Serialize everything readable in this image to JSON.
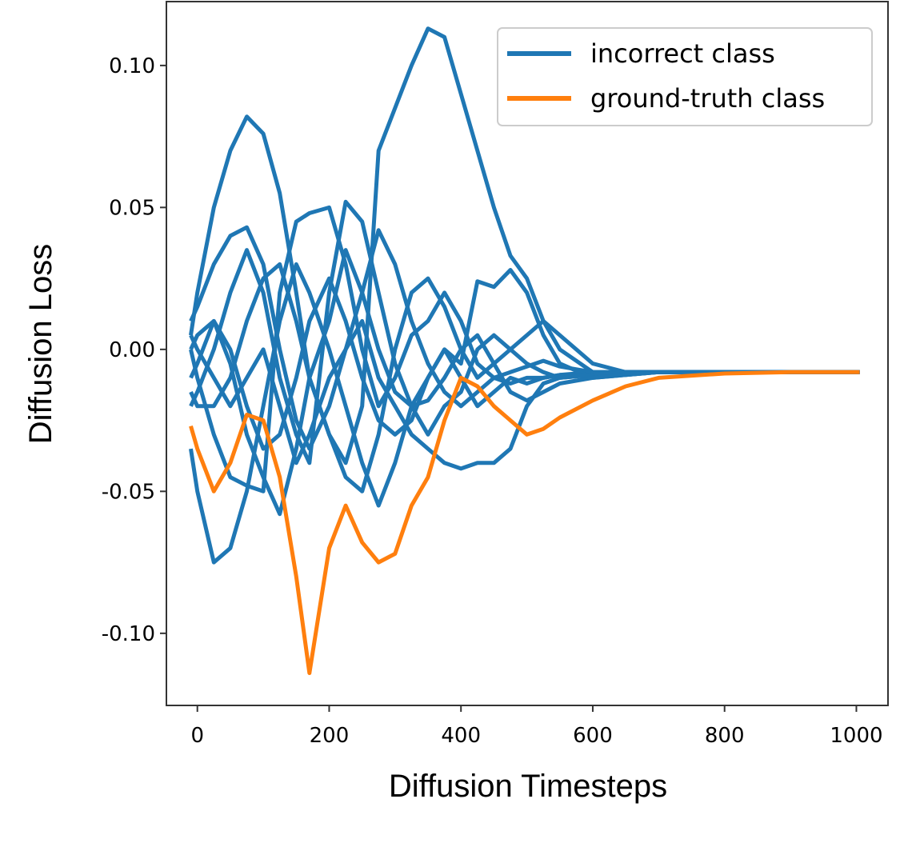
{
  "chart_data": {
    "type": "line",
    "xlabel": "Diffusion Timesteps",
    "ylabel": "Diffusion Loss",
    "x": [
      -10,
      0,
      25,
      50,
      75,
      100,
      125,
      150,
      170,
      200,
      225,
      250,
      275,
      300,
      325,
      350,
      375,
      400,
      425,
      450,
      475,
      500,
      525,
      550,
      600,
      650,
      700,
      800,
      900,
      1005
    ],
    "series": [
      {
        "name": "incorrect class",
        "color": "#1f77b4",
        "lines": [
          [
            0.005,
            0.02,
            0.05,
            0.07,
            0.082,
            0.076,
            0.055,
            0.02,
            -0.01,
            -0.03,
            -0.04,
            -0.02,
            0.07,
            0.085,
            0.1,
            0.113,
            0.11,
            0.09,
            0.07,
            0.05,
            0.033,
            0.025,
            0.01,
            0.0,
            -0.008,
            -0.009,
            -0.008,
            -0.008,
            -0.008,
            -0.008
          ],
          [
            -0.035,
            -0.05,
            -0.075,
            -0.07,
            -0.05,
            -0.02,
            0.01,
            0.03,
            0.02,
            0.0,
            -0.02,
            -0.04,
            -0.055,
            -0.04,
            -0.02,
            -0.01,
            0.0,
            -0.01,
            -0.02,
            -0.015,
            -0.01,
            -0.012,
            -0.01,
            -0.009,
            -0.008,
            -0.008,
            -0.008,
            -0.008,
            -0.008,
            -0.008
          ],
          [
            0.0,
            -0.01,
            -0.03,
            -0.045,
            -0.048,
            -0.05,
            0.02,
            0.045,
            0.048,
            0.05,
            0.03,
            0.0,
            -0.02,
            -0.01,
            0.005,
            0.01,
            0.02,
            0.01,
            -0.005,
            -0.01,
            -0.012,
            -0.01,
            -0.01,
            -0.009,
            -0.009,
            -0.008,
            -0.008,
            -0.008,
            -0.008,
            -0.008
          ],
          [
            -0.02,
            -0.015,
            0.0,
            0.02,
            0.035,
            0.02,
            -0.01,
            -0.03,
            -0.04,
            0.02,
            0.052,
            0.045,
            0.02,
            -0.005,
            -0.02,
            -0.03,
            -0.02,
            -0.015,
            0.0,
            0.005,
            0.0,
            -0.005,
            -0.008,
            -0.01,
            -0.009,
            -0.008,
            -0.008,
            -0.008,
            -0.008,
            -0.008
          ],
          [
            0.01,
            0.015,
            0.03,
            0.04,
            0.043,
            0.03,
            0.0,
            -0.025,
            -0.035,
            -0.02,
            0.0,
            0.02,
            0.042,
            0.03,
            0.01,
            -0.005,
            -0.015,
            -0.02,
            -0.015,
            -0.01,
            -0.008,
            -0.006,
            -0.004,
            -0.006,
            -0.008,
            -0.008,
            -0.008,
            -0.008,
            -0.008,
            -0.008
          ],
          [
            -0.01,
            -0.005,
            0.01,
            0.0,
            -0.02,
            -0.035,
            -0.03,
            -0.01,
            0.01,
            0.025,
            0.01,
            -0.01,
            -0.025,
            -0.03,
            -0.025,
            -0.01,
            0.0,
            -0.005,
            0.024,
            0.022,
            0.028,
            0.02,
            0.005,
            -0.005,
            -0.01,
            -0.009,
            -0.008,
            -0.008,
            -0.008,
            -0.008
          ],
          [
            0.005,
            0.0,
            -0.01,
            -0.02,
            -0.01,
            0.0,
            -0.02,
            -0.04,
            -0.03,
            -0.01,
            0.0,
            0.01,
            -0.01,
            -0.02,
            -0.03,
            -0.035,
            -0.04,
            -0.042,
            -0.04,
            -0.04,
            -0.035,
            -0.02,
            -0.012,
            -0.01,
            -0.009,
            -0.008,
            -0.008,
            -0.008,
            -0.008,
            -0.008
          ],
          [
            -0.015,
            -0.02,
            -0.02,
            -0.01,
            0.01,
            0.025,
            0.03,
            0.01,
            -0.01,
            -0.03,
            -0.045,
            -0.05,
            -0.03,
            0.0,
            0.02,
            0.025,
            0.015,
            0.0,
            -0.01,
            -0.005,
            0.0,
            0.005,
            0.01,
            0.005,
            -0.005,
            -0.008,
            -0.008,
            -0.008,
            -0.008,
            -0.008
          ],
          [
            0.0,
            0.005,
            0.01,
            -0.005,
            -0.03,
            -0.045,
            -0.058,
            -0.035,
            -0.01,
            0.01,
            0.035,
            0.02,
            0.0,
            -0.015,
            -0.02,
            -0.018,
            -0.01,
            0.0,
            0.005,
            -0.005,
            -0.015,
            -0.018,
            -0.015,
            -0.012,
            -0.01,
            -0.009,
            -0.008,
            -0.008,
            -0.008,
            -0.008
          ]
        ]
      },
      {
        "name": "ground-truth class",
        "color": "#ff7f0e",
        "values": [
          -0.027,
          -0.035,
          -0.05,
          -0.04,
          -0.023,
          -0.025,
          -0.045,
          -0.08,
          -0.114,
          -0.07,
          -0.055,
          -0.068,
          -0.075,
          -0.072,
          -0.055,
          -0.045,
          -0.025,
          -0.01,
          -0.013,
          -0.02,
          -0.025,
          -0.03,
          -0.028,
          -0.024,
          -0.018,
          -0.013,
          -0.01,
          -0.0085,
          -0.008,
          -0.008
        ]
      }
    ],
    "xlim": [
      -47,
      1048
    ],
    "ylim": [
      -0.1254,
      0.1225
    ],
    "xticks": [
      0,
      200,
      400,
      600,
      800,
      1000
    ],
    "yticks": [
      {
        "value": -0.1,
        "label": "-0.10"
      },
      {
        "value": -0.05,
        "label": "-0.05"
      },
      {
        "value": 0,
        "label": "0.00"
      },
      {
        "value": 0.05,
        "label": "0.05"
      },
      {
        "value": 0.1,
        "label": "0.10"
      }
    ],
    "legend": "upper right"
  }
}
